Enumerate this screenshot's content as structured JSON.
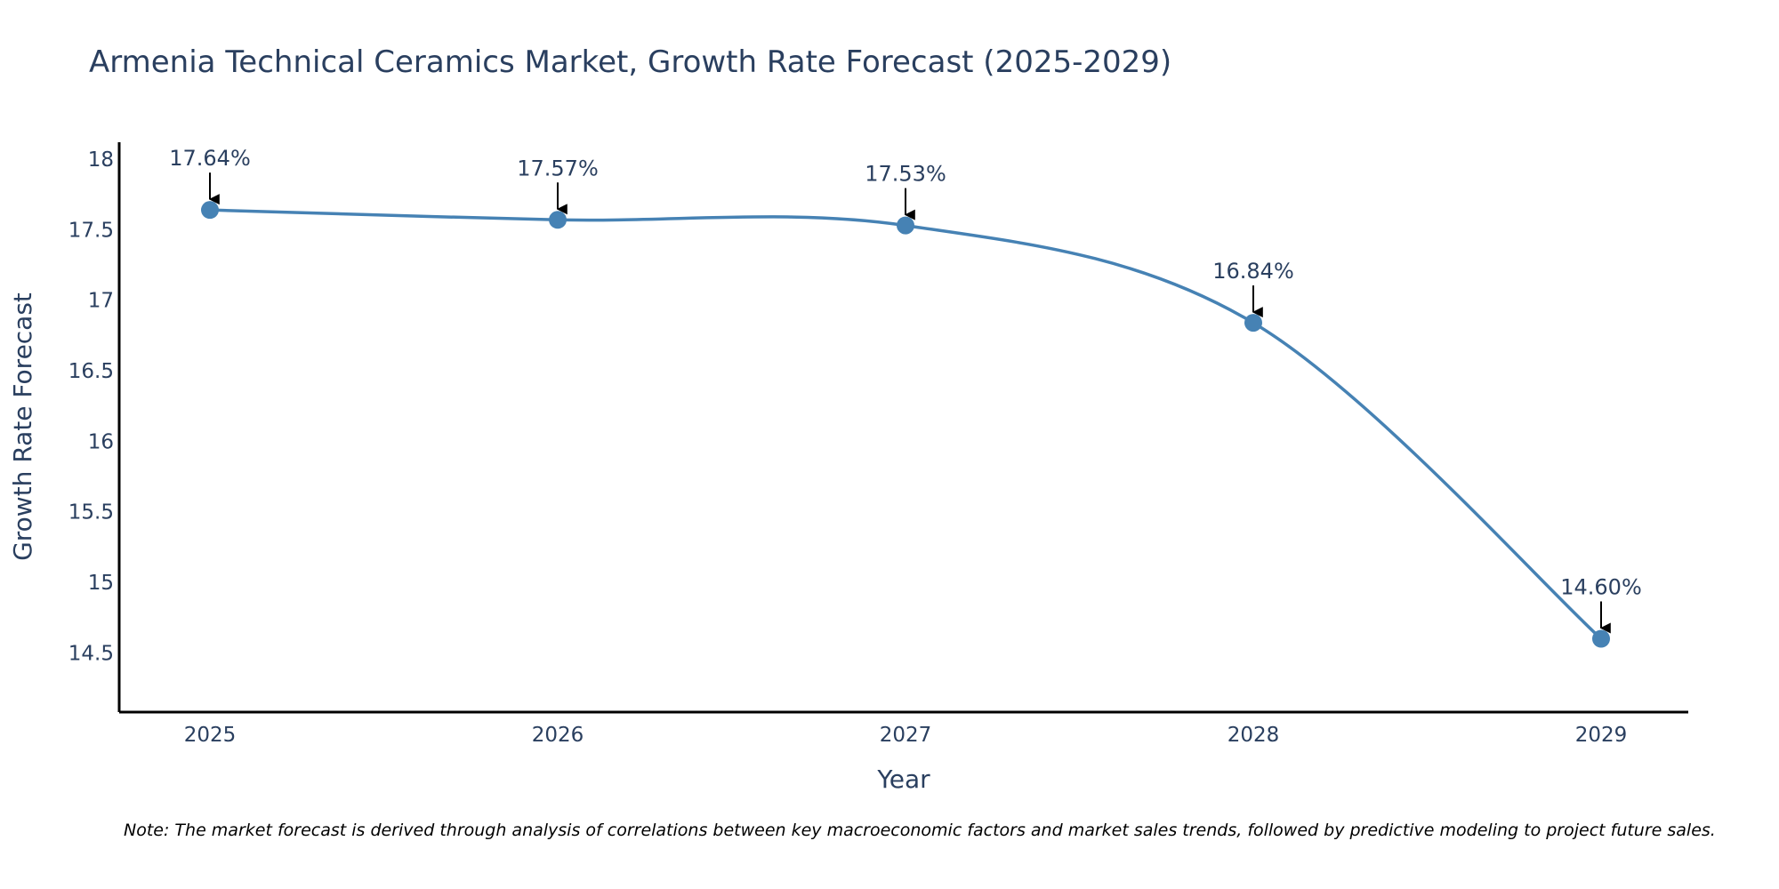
{
  "chart_data": {
    "type": "line",
    "title": "Armenia Technical Ceramics Market, Growth Rate Forecast (2025-2029)",
    "xlabel": "Year",
    "ylabel": "Growth Rate Forecast",
    "categories": [
      "2025",
      "2026",
      "2027",
      "2028",
      "2029"
    ],
    "series": [
      {
        "name": "Growth Rate Forecast",
        "values": [
          17.64,
          17.57,
          17.53,
          16.84,
          14.6
        ],
        "color": "#4682b4"
      }
    ],
    "data_labels": [
      "17.64%",
      "17.57%",
      "17.53%",
      "16.84%",
      "14.60%"
    ],
    "ylim": [
      14.08,
      18.12
    ],
    "y_ticks": [
      14.5,
      15,
      15.5,
      16,
      16.5,
      17,
      17.5,
      18
    ],
    "y_tick_labels": [
      "14.5",
      "15",
      "15.5",
      "16",
      "16.5",
      "17",
      "17.5",
      "18"
    ],
    "grid": false,
    "line_shape": "spline",
    "annotation_arrows": true,
    "note": "Note: The market forecast is derived through analysis of correlations between key macroeconomic factors and market sales trends, followed by predictive modeling to project future sales."
  }
}
